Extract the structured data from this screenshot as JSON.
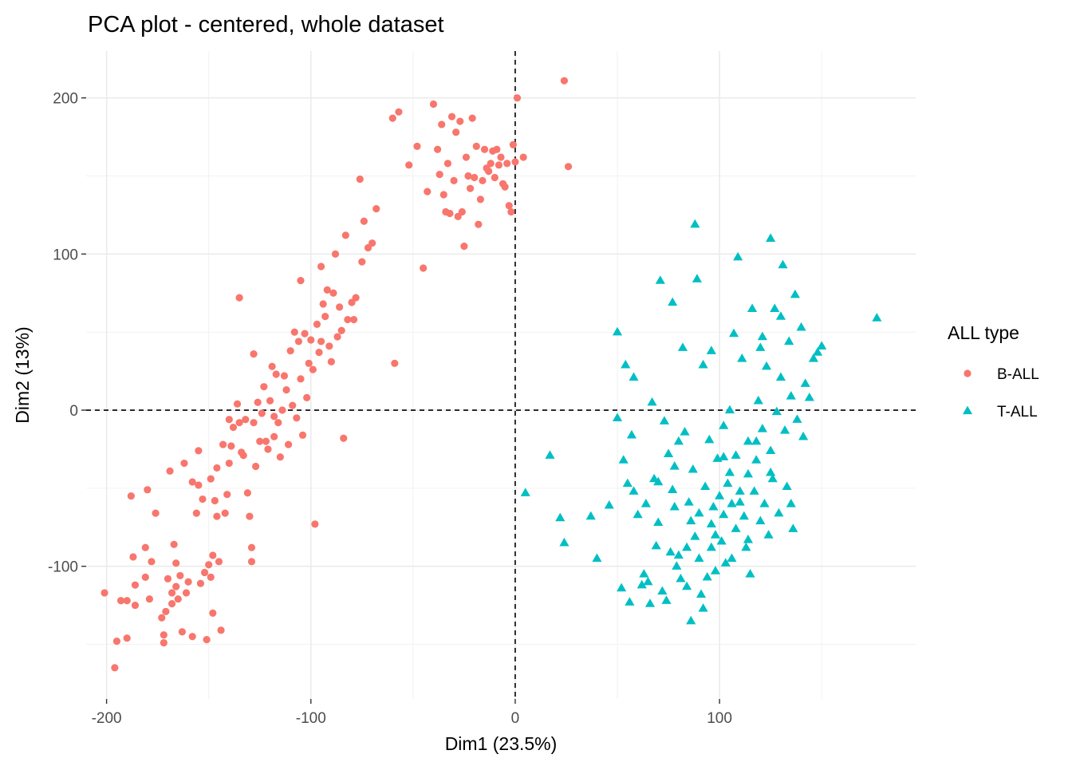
{
  "chart_data": {
    "type": "scatter",
    "title": "PCA plot - centered, whole dataset",
    "xlabel": "Dim1 (23.5%)",
    "ylabel": "Dim2 (13%)",
    "xlim": [
      -210,
      196
    ],
    "ylim": [
      -185,
      230
    ],
    "x_ticks": [
      -200,
      -100,
      0,
      100
    ],
    "x_tick_labels": [
      "-200",
      "-100",
      "0",
      "100"
    ],
    "y_ticks": [
      -100,
      0,
      100,
      200
    ],
    "y_tick_labels": [
      "-100",
      "0",
      "100",
      "200"
    ],
    "grid": true,
    "reference_lines": {
      "x": 0,
      "y": 0,
      "style": "dashed"
    },
    "legend": {
      "title": "ALL type",
      "position": "right"
    },
    "series": [
      {
        "name": "B-ALL",
        "color": "#F8766D",
        "marker": "circle",
        "points": [
          [
            -201,
            -117
          ],
          [
            -196,
            -165
          ],
          [
            -195,
            -148
          ],
          [
            -193,
            -122
          ],
          [
            -190,
            -146
          ],
          [
            -190,
            -122
          ],
          [
            -188,
            -55
          ],
          [
            -187,
            -94
          ],
          [
            -186,
            -112
          ],
          [
            -186,
            -125
          ],
          [
            -181,
            -88
          ],
          [
            -181,
            -107
          ],
          [
            -180,
            -51
          ],
          [
            -179,
            -121
          ],
          [
            -178,
            -97
          ],
          [
            -176,
            -66
          ],
          [
            -173,
            -133
          ],
          [
            -172,
            -144
          ],
          [
            -172,
            -149
          ],
          [
            -171,
            -129
          ],
          [
            -170,
            -108
          ],
          [
            -169,
            -39
          ],
          [
            -168,
            -117
          ],
          [
            -168,
            -124
          ],
          [
            -167,
            -86
          ],
          [
            -166,
            -98
          ],
          [
            -166,
            -113
          ],
          [
            -165,
            -121
          ],
          [
            -164,
            -106
          ],
          [
            -163,
            -142
          ],
          [
            -162,
            -34
          ],
          [
            -161,
            -117
          ],
          [
            -160,
            -110
          ],
          [
            -158,
            -145
          ],
          [
            -158,
            -46
          ],
          [
            -156,
            -66
          ],
          [
            -155,
            -48
          ],
          [
            -155,
            -26
          ],
          [
            -154,
            -111
          ],
          [
            -153,
            -57
          ],
          [
            -152,
            -104
          ],
          [
            -151,
            -147
          ],
          [
            -150,
            -99
          ],
          [
            -149,
            -44
          ],
          [
            -149,
            -107
          ],
          [
            -148,
            -93
          ],
          [
            -148,
            -130
          ],
          [
            -147,
            -58
          ],
          [
            -146,
            -37
          ],
          [
            -146,
            -68
          ],
          [
            -145,
            -97
          ],
          [
            -144,
            -141
          ],
          [
            -143,
            -22
          ],
          [
            -142,
            -66
          ],
          [
            -141,
            -54
          ],
          [
            -140,
            -34
          ],
          [
            -139,
            -23
          ],
          [
            -138,
            -11
          ],
          [
            -136,
            4
          ],
          [
            -135,
            -8
          ],
          [
            -134,
            -27
          ],
          [
            -133,
            -29
          ],
          [
            -132,
            -6
          ],
          [
            -131,
            -53
          ],
          [
            -130,
            -68
          ],
          [
            -129,
            -88
          ],
          [
            -129,
            -97
          ],
          [
            -128,
            -8
          ],
          [
            -127,
            -36
          ],
          [
            -126,
            5
          ],
          [
            -125,
            -20
          ],
          [
            -124,
            -2
          ],
          [
            -123,
            15
          ],
          [
            -122,
            -20
          ],
          [
            -121,
            -25
          ],
          [
            -120,
            6
          ],
          [
            -119,
            28
          ],
          [
            -118,
            -17
          ],
          [
            -117,
            23
          ],
          [
            -116,
            -8
          ],
          [
            -115,
            -30
          ],
          [
            -114,
            0
          ],
          [
            -113,
            22
          ],
          [
            -112,
            13
          ],
          [
            -111,
            -22
          ],
          [
            -110,
            38
          ],
          [
            -109,
            3
          ],
          [
            -108,
            50
          ],
          [
            -107,
            -5
          ],
          [
            -106,
            44
          ],
          [
            -105,
            20
          ],
          [
            -104,
            -16
          ],
          [
            -103,
            49
          ],
          [
            -102,
            8
          ],
          [
            -101,
            30
          ],
          [
            -100,
            45
          ],
          [
            -99,
            26
          ],
          [
            -98,
            -73
          ],
          [
            -97,
            55
          ],
          [
            -96,
            37
          ],
          [
            -95,
            44
          ],
          [
            -94,
            68
          ],
          [
            -93,
            60
          ],
          [
            -92,
            77
          ],
          [
            -91,
            41
          ],
          [
            -90,
            31
          ],
          [
            -89,
            75
          ],
          [
            -88,
            100
          ],
          [
            -87,
            47
          ],
          [
            -86,
            66
          ],
          [
            -85,
            51
          ],
          [
            -84,
            -18
          ],
          [
            -83,
            112
          ],
          [
            -82,
            58
          ],
          [
            -80,
            69
          ],
          [
            -79,
            58
          ],
          [
            -78,
            72
          ],
          [
            -76,
            148
          ],
          [
            -74,
            121
          ],
          [
            -72,
            104
          ],
          [
            -70,
            107
          ],
          [
            -68,
            129
          ],
          [
            -60,
            187
          ],
          [
            -59,
            30
          ],
          [
            -57,
            191
          ],
          [
            -52,
            157
          ],
          [
            -48,
            169
          ],
          [
            -45,
            91
          ],
          [
            -43,
            140
          ],
          [
            -40,
            196
          ],
          [
            -38,
            167
          ],
          [
            -37,
            151
          ],
          [
            -36,
            183
          ],
          [
            -35,
            138
          ],
          [
            -34,
            127
          ],
          [
            -33,
            158
          ],
          [
            -32,
            126
          ],
          [
            -31,
            188
          ],
          [
            -30,
            147
          ],
          [
            -29,
            178
          ],
          [
            -28,
            124
          ],
          [
            -27,
            185
          ],
          [
            -26,
            127
          ],
          [
            -25,
            105
          ],
          [
            -24,
            162
          ],
          [
            -23,
            150
          ],
          [
            -22,
            142
          ],
          [
            -21,
            187
          ],
          [
            -20,
            149
          ],
          [
            -19,
            169
          ],
          [
            -18,
            119
          ],
          [
            -17,
            135
          ],
          [
            -16,
            147
          ],
          [
            -15,
            167
          ],
          [
            -14,
            155
          ],
          [
            -13,
            153
          ],
          [
            -12,
            158
          ],
          [
            -11,
            166
          ],
          [
            -10,
            149
          ],
          [
            -9,
            167
          ],
          [
            -8,
            157
          ],
          [
            -7,
            162
          ],
          [
            -6,
            145
          ],
          [
            -5,
            143
          ],
          [
            -4,
            158
          ],
          [
            -3,
            131
          ],
          [
            -2,
            127
          ],
          [
            -1,
            170
          ],
          [
            0,
            159
          ],
          [
            1,
            200
          ],
          [
            4,
            162
          ],
          [
            24,
            211
          ],
          [
            26,
            156
          ],
          [
            -135,
            72
          ],
          [
            -128,
            36
          ],
          [
            -95,
            92
          ],
          [
            -105,
            83
          ],
          [
            -75,
            95
          ],
          [
            -118,
            -4
          ],
          [
            -140,
            -6
          ]
        ]
      },
      {
        "name": "T-ALL",
        "color": "#00BFC4",
        "marker": "triangle",
        "points": [
          [
            5,
            -53
          ],
          [
            17,
            -29
          ],
          [
            22,
            -69
          ],
          [
            24,
            -85
          ],
          [
            37,
            -68
          ],
          [
            40,
            -95
          ],
          [
            46,
            -61
          ],
          [
            50,
            50
          ],
          [
            50,
            -5
          ],
          [
            52,
            -114
          ],
          [
            53,
            -32
          ],
          [
            54,
            29
          ],
          [
            55,
            -47
          ],
          [
            56,
            -123
          ],
          [
            57,
            -16
          ],
          [
            58,
            21
          ],
          [
            58,
            -52
          ],
          [
            60,
            -67
          ],
          [
            62,
            -112
          ],
          [
            63,
            -105
          ],
          [
            64,
            -60
          ],
          [
            65,
            -110
          ],
          [
            66,
            -124
          ],
          [
            67,
            5
          ],
          [
            68,
            -44
          ],
          [
            69,
            -87
          ],
          [
            70,
            -46
          ],
          [
            71,
            83
          ],
          [
            72,
            -116
          ],
          [
            73,
            -7
          ],
          [
            74,
            -122
          ],
          [
            75,
            -28
          ],
          [
            76,
            -91
          ],
          [
            77,
            -51
          ],
          [
            77,
            69
          ],
          [
            78,
            -36
          ],
          [
            78,
            -62
          ],
          [
            79,
            -100
          ],
          [
            80,
            -93
          ],
          [
            81,
            -108
          ],
          [
            82,
            40
          ],
          [
            83,
            -14
          ],
          [
            84,
            -88
          ],
          [
            85,
            -59
          ],
          [
            86,
            -71
          ],
          [
            86,
            -135
          ],
          [
            87,
            -38
          ],
          [
            88,
            119
          ],
          [
            88,
            -81
          ],
          [
            89,
            84
          ],
          [
            90,
            -95
          ],
          [
            90,
            -66
          ],
          [
            91,
            -118
          ],
          [
            92,
            29
          ],
          [
            93,
            -49
          ],
          [
            94,
            -107
          ],
          [
            95,
            -19
          ],
          [
            96,
            -73
          ],
          [
            96,
            38
          ],
          [
            97,
            -62
          ],
          [
            98,
            -103
          ],
          [
            99,
            -31
          ],
          [
            100,
            -55
          ],
          [
            101,
            -84
          ],
          [
            102,
            -67
          ],
          [
            102,
            -10
          ],
          [
            103,
            -98
          ],
          [
            104,
            -47
          ],
          [
            105,
            0
          ],
          [
            106,
            -95
          ],
          [
            106,
            -60
          ],
          [
            107,
            49
          ],
          [
            108,
            -76
          ],
          [
            108,
            -29
          ],
          [
            109,
            98
          ],
          [
            110,
            -59
          ],
          [
            111,
            33
          ],
          [
            112,
            -68
          ],
          [
            113,
            -88
          ],
          [
            114,
            -20
          ],
          [
            114,
            -41
          ],
          [
            115,
            -105
          ],
          [
            116,
            65
          ],
          [
            117,
            -52
          ],
          [
            118,
            -32
          ],
          [
            119,
            6
          ],
          [
            120,
            -71
          ],
          [
            121,
            -12
          ],
          [
            121,
            47
          ],
          [
            122,
            -60
          ],
          [
            123,
            28
          ],
          [
            124,
            -80
          ],
          [
            125,
            110
          ],
          [
            125,
            -26
          ],
          [
            126,
            -44
          ],
          [
            127,
            65
          ],
          [
            128,
            -1
          ],
          [
            129,
            -66
          ],
          [
            130,
            21
          ],
          [
            131,
            93
          ],
          [
            132,
            -13
          ],
          [
            133,
            -49
          ],
          [
            134,
            44
          ],
          [
            135,
            9
          ],
          [
            136,
            -76
          ],
          [
            137,
            74
          ],
          [
            138,
            -6
          ],
          [
            140,
            53
          ],
          [
            141,
            -17
          ],
          [
            142,
            17
          ],
          [
            144,
            8
          ],
          [
            146,
            33
          ],
          [
            148,
            37
          ],
          [
            150,
            41
          ],
          [
            177,
            59
          ],
          [
            114,
            -83
          ],
          [
            98,
            -80
          ],
          [
            92,
            -127
          ],
          [
            70,
            -72
          ],
          [
            80,
            -20
          ],
          [
            105,
            -40
          ],
          [
            118,
            -20
          ],
          [
            125,
            -40
          ],
          [
            135,
            -60
          ],
          [
            96,
            -88
          ],
          [
            84,
            -113
          ],
          [
            110,
            -52
          ],
          [
            102,
            -30
          ],
          [
            120,
            40
          ],
          [
            130,
            60
          ]
        ]
      }
    ]
  }
}
